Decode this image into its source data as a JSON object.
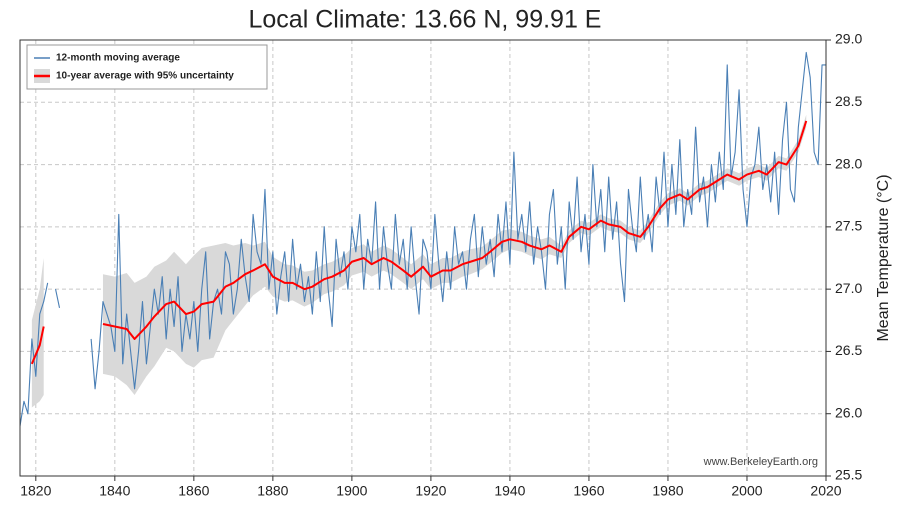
{
  "chart_data": {
    "type": "line",
    "title": "Local Climate: 13.66 N, 99.91 E",
    "ylabel": "Mean Temperature (°C)",
    "watermark": "www.BerkeleyEarth.org",
    "xlim": [
      1816,
      2020
    ],
    "ylim": [
      25.5,
      29.0
    ],
    "xticks": [
      1820,
      1840,
      1860,
      1880,
      1900,
      1920,
      1940,
      1960,
      1980,
      2000,
      2020
    ],
    "yticks": [
      25.5,
      {
        "value": 26,
        "label": "26.0"
      },
      26.5,
      {
        "value": 27,
        "label": "27.0"
      },
      27.5,
      {
        "value": 28,
        "label": "28.0"
      },
      28.5,
      {
        "value": 29,
        "label": "29.0"
      }
    ],
    "grid": true,
    "legend": "upper left",
    "series": [
      {
        "name": "12-month moving average",
        "color": "#4a7fb5",
        "x": [
          1816,
          1817,
          1818,
          1819,
          1820,
          1821,
          1822,
          1823,
          1824,
          1825,
          1826,
          1827,
          1828,
          1829,
          1830,
          1831,
          1832,
          1833,
          1834,
          1835,
          1836,
          1837,
          1838,
          1839,
          1840,
          1841,
          1842,
          1843,
          1844,
          1845,
          1846,
          1847,
          1848,
          1849,
          1850,
          1851,
          1852,
          1853,
          1854,
          1855,
          1856,
          1857,
          1858,
          1859,
          1860,
          1861,
          1862,
          1863,
          1864,
          1865,
          1866,
          1867,
          1868,
          1869,
          1870,
          1871,
          1872,
          1873,
          1874,
          1875,
          1876,
          1877,
          1878,
          1879,
          1880,
          1881,
          1882,
          1883,
          1884,
          1885,
          1886,
          1887,
          1888,
          1889,
          1890,
          1891,
          1892,
          1893,
          1894,
          1895,
          1896,
          1897,
          1898,
          1899,
          1900,
          1901,
          1902,
          1903,
          1904,
          1905,
          1906,
          1907,
          1908,
          1909,
          1910,
          1911,
          1912,
          1913,
          1914,
          1915,
          1916,
          1917,
          1918,
          1919,
          1920,
          1921,
          1922,
          1923,
          1924,
          1925,
          1926,
          1927,
          1928,
          1929,
          1930,
          1931,
          1932,
          1933,
          1934,
          1935,
          1936,
          1937,
          1938,
          1939,
          1940,
          1941,
          1942,
          1943,
          1944,
          1945,
          1946,
          1947,
          1948,
          1949,
          1950,
          1951,
          1952,
          1953,
          1954,
          1955,
          1956,
          1957,
          1958,
          1959,
          1960,
          1961,
          1962,
          1963,
          1964,
          1965,
          1966,
          1967,
          1968,
          1969,
          1970,
          1971,
          1972,
          1973,
          1974,
          1975,
          1976,
          1977,
          1978,
          1979,
          1980,
          1981,
          1982,
          1983,
          1984,
          1985,
          1986,
          1987,
          1988,
          1989,
          1990,
          1991,
          1992,
          1993,
          1994,
          1995,
          1996,
          1997,
          1998,
          1999,
          2000,
          2001,
          2002,
          2003,
          2004,
          2005,
          2006,
          2007,
          2008,
          2009,
          2010,
          2011,
          2012,
          2013,
          2014,
          2015,
          2016,
          2017,
          2018,
          2019,
          2020
        ],
        "values": [
          25.9,
          26.1,
          26.0,
          26.6,
          26.3,
          26.8,
          26.9,
          27.05,
          null,
          27.0,
          26.85,
          null,
          null,
          null,
          null,
          null,
          null,
          null,
          26.6,
          26.2,
          26.5,
          26.9,
          26.8,
          26.7,
          26.5,
          27.6,
          26.4,
          26.8,
          26.5,
          26.2,
          26.5,
          26.9,
          26.4,
          26.7,
          27.0,
          26.8,
          27.1,
          26.6,
          27.0,
          26.7,
          27.1,
          26.5,
          26.8,
          26.6,
          26.9,
          26.5,
          27.0,
          27.3,
          26.6,
          26.9,
          27.0,
          26.8,
          27.3,
          27.2,
          26.8,
          27.0,
          27.4,
          27.1,
          26.9,
          27.6,
          27.3,
          27.2,
          27.8,
          27.0,
          27.3,
          26.8,
          27.1,
          27.3,
          26.9,
          27.4,
          27.0,
          27.2,
          26.9,
          27.1,
          26.8,
          27.3,
          26.9,
          27.5,
          27.0,
          26.7,
          27.4,
          27.1,
          27.3,
          27.0,
          27.5,
          27.3,
          27.6,
          27.0,
          27.4,
          27.2,
          27.7,
          27.0,
          27.5,
          27.2,
          27.0,
          27.6,
          27.2,
          27.4,
          27.0,
          27.5,
          27.1,
          26.8,
          27.4,
          27.3,
          27.0,
          27.6,
          27.2,
          26.9,
          27.3,
          27.0,
          27.5,
          27.2,
          27.3,
          27.0,
          27.4,
          27.6,
          27.1,
          27.5,
          27.2,
          27.4,
          27.1,
          27.6,
          27.3,
          27.7,
          27.2,
          28.1,
          27.4,
          27.6,
          27.3,
          27.7,
          27.2,
          27.5,
          27.3,
          27.0,
          27.6,
          27.8,
          27.2,
          27.5,
          27.0,
          27.7,
          27.4,
          27.9,
          27.3,
          27.6,
          27.2,
          28.0,
          27.5,
          27.8,
          27.3,
          27.9,
          27.4,
          27.7,
          27.2,
          26.9,
          27.8,
          27.5,
          27.3,
          27.9,
          27.4,
          27.6,
          27.3,
          27.9,
          27.6,
          28.1,
          27.5,
          28.0,
          27.6,
          28.2,
          27.5,
          27.8,
          27.6,
          28.3,
          27.7,
          27.9,
          27.5,
          28.0,
          27.7,
          28.1,
          27.8,
          28.8,
          27.9,
          28.1,
          28.6,
          27.8,
          27.5,
          27.9,
          28.0,
          28.3,
          27.8,
          28.0,
          27.7,
          28.1,
          27.6,
          28.2,
          28.5,
          27.8,
          27.7,
          28.3,
          28.6,
          28.9,
          28.7,
          28.1,
          28.0,
          28.8,
          28.8
        ]
      },
      {
        "name": "10-year average with 95% uncertainty",
        "color": "#ff0000",
        "band_color": "#d9d9d9",
        "x": [
          1819,
          1821,
          1822,
          1830,
          1837,
          1840,
          1843,
          1845,
          1848,
          1850,
          1853,
          1855,
          1858,
          1860,
          1862,
          1865,
          1868,
          1870,
          1873,
          1875,
          1878,
          1880,
          1883,
          1885,
          1888,
          1890,
          1893,
          1895,
          1898,
          1900,
          1903,
          1905,
          1908,
          1910,
          1913,
          1915,
          1918,
          1920,
          1923,
          1925,
          1928,
          1930,
          1933,
          1935,
          1938,
          1940,
          1943,
          1945,
          1948,
          1950,
          1953,
          1955,
          1958,
          1960,
          1963,
          1965,
          1968,
          1970,
          1973,
          1975,
          1978,
          1980,
          1983,
          1985,
          1988,
          1990,
          1993,
          1995,
          1998,
          2000,
          2003,
          2005,
          2008,
          2010,
          2013,
          2015
        ],
        "values": [
          26.4,
          26.55,
          26.7,
          null,
          26.72,
          26.7,
          26.68,
          26.6,
          26.7,
          26.78,
          26.88,
          26.9,
          26.8,
          26.82,
          26.88,
          26.9,
          27.02,
          27.05,
          27.12,
          27.15,
          27.2,
          27.1,
          27.05,
          27.05,
          27.0,
          27.02,
          27.08,
          27.1,
          27.15,
          27.22,
          27.25,
          27.2,
          27.25,
          27.22,
          27.15,
          27.1,
          27.18,
          27.1,
          27.15,
          27.15,
          27.2,
          27.22,
          27.25,
          27.3,
          27.38,
          27.4,
          27.38,
          27.35,
          27.32,
          27.35,
          27.3,
          27.42,
          27.5,
          27.48,
          27.55,
          27.52,
          27.5,
          27.45,
          27.42,
          27.5,
          27.65,
          27.72,
          27.76,
          27.72,
          27.8,
          27.82,
          27.88,
          27.92,
          27.88,
          27.92,
          27.95,
          27.92,
          28.02,
          28.0,
          28.15,
          28.35
        ],
        "uncertainty": [
          0.35,
          0.45,
          0.55,
          null,
          0.4,
          0.4,
          0.45,
          0.45,
          0.4,
          0.4,
          0.35,
          0.4,
          0.4,
          0.45,
          0.45,
          0.45,
          0.35,
          0.3,
          0.25,
          0.2,
          0.18,
          0.16,
          0.15,
          0.14,
          0.14,
          0.13,
          0.12,
          0.12,
          0.12,
          0.11,
          0.11,
          0.1,
          0.1,
          0.1,
          0.1,
          0.1,
          0.1,
          0.1,
          0.1,
          0.1,
          0.1,
          0.1,
          0.09,
          0.09,
          0.09,
          0.08,
          0.08,
          0.08,
          0.08,
          0.07,
          0.05,
          0.05,
          0.05,
          0.05,
          0.05,
          0.05,
          0.05,
          0.05,
          0.05,
          0.05,
          0.05,
          0.05,
          0.05,
          0.05,
          0.05,
          0.05,
          0.05,
          0.05,
          0.05,
          0.05,
          0.05,
          0.05,
          0.05,
          0.05,
          0.05,
          0.05
        ]
      }
    ]
  }
}
